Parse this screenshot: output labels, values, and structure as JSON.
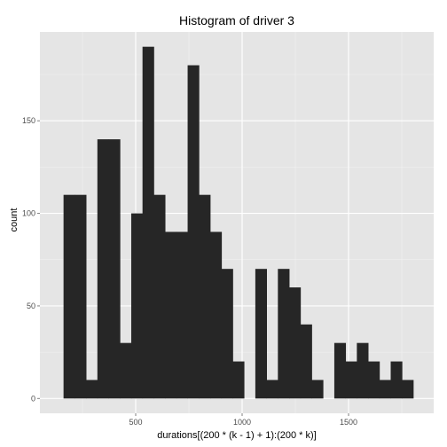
{
  "chart_data": {
    "type": "bar",
    "title": "Histogram of driver 3",
    "xlabel": "durations[(200 * (k - 1) + 1):(200 * k)]",
    "ylabel": "count",
    "xlim": [
      50,
      1900
    ],
    "ylim": [
      -8,
      198
    ],
    "x_ticks": [
      500,
      1000,
      1500
    ],
    "x_tick_labels": [
      "500",
      "1000",
      "1500"
    ],
    "y_ticks": [
      0,
      50,
      100,
      150
    ],
    "y_tick_labels": [
      "0",
      "50",
      "100",
      "150"
    ],
    "grid": true,
    "panel_background": "#e5e5e5",
    "grid_color": "#ffffff",
    "bar_color": "#262626",
    "bins": [
      {
        "x0": 161,
        "x1": 214,
        "count": 110
      },
      {
        "x0": 214,
        "x1": 267,
        "count": 110
      },
      {
        "x0": 267,
        "x1": 320,
        "count": 10
      },
      {
        "x0": 320,
        "x1": 373,
        "count": 140
      },
      {
        "x0": 373,
        "x1": 426,
        "count": 140
      },
      {
        "x0": 426,
        "x1": 479,
        "count": 30
      },
      {
        "x0": 479,
        "x1": 532,
        "count": 100
      },
      {
        "x0": 532,
        "x1": 585,
        "count": 190
      },
      {
        "x0": 585,
        "x1": 638,
        "count": 110
      },
      {
        "x0": 638,
        "x1": 691,
        "count": 90
      },
      {
        "x0": 691,
        "x1": 744,
        "count": 90
      },
      {
        "x0": 744,
        "x1": 797,
        "count": 180
      },
      {
        "x0": 797,
        "x1": 850,
        "count": 110
      },
      {
        "x0": 850,
        "x1": 903,
        "count": 90
      },
      {
        "x0": 903,
        "x1": 956,
        "count": 70
      },
      {
        "x0": 956,
        "x1": 1009,
        "count": 20
      },
      {
        "x0": 1009,
        "x1": 1062,
        "count": 0
      },
      {
        "x0": 1062,
        "x1": 1115,
        "count": 70
      },
      {
        "x0": 1115,
        "x1": 1168,
        "count": 10
      },
      {
        "x0": 1168,
        "x1": 1221,
        "count": 70
      },
      {
        "x0": 1221,
        "x1": 1274,
        "count": 60
      },
      {
        "x0": 1274,
        "x1": 1327,
        "count": 40
      },
      {
        "x0": 1327,
        "x1": 1380,
        "count": 10
      },
      {
        "x0": 1380,
        "x1": 1433,
        "count": 0
      },
      {
        "x0": 1433,
        "x1": 1486,
        "count": 30
      },
      {
        "x0": 1486,
        "x1": 1539,
        "count": 20
      },
      {
        "x0": 1539,
        "x1": 1592,
        "count": 30
      },
      {
        "x0": 1592,
        "x1": 1645,
        "count": 20
      },
      {
        "x0": 1645,
        "x1": 1698,
        "count": 10
      },
      {
        "x0": 1698,
        "x1": 1751,
        "count": 20
      },
      {
        "x0": 1751,
        "x1": 1804,
        "count": 10
      }
    ]
  }
}
